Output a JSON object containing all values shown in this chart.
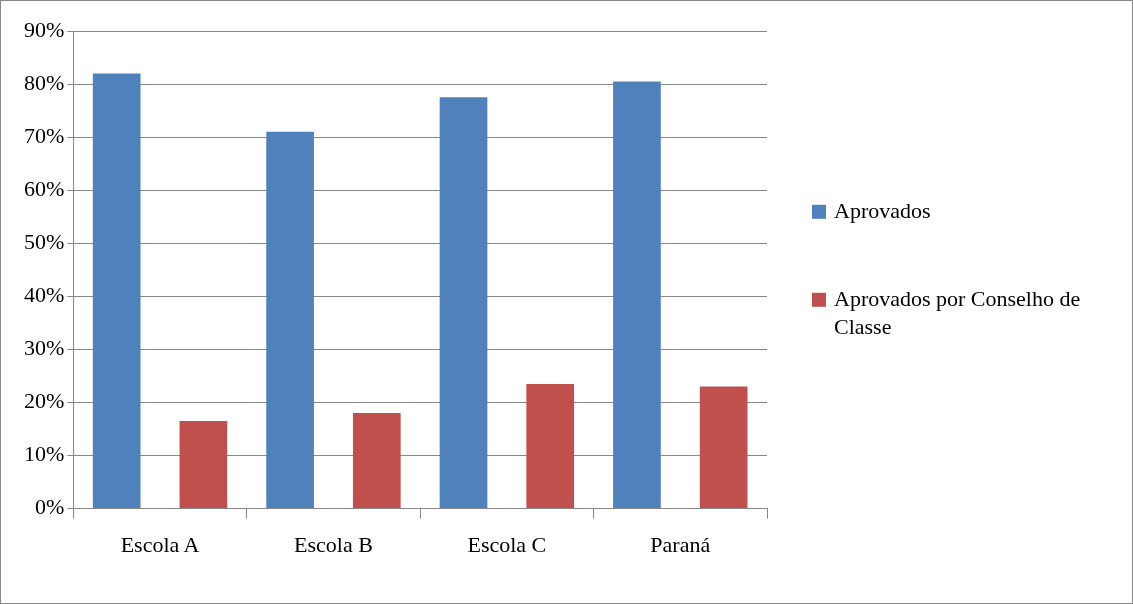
{
  "chart_data": {
    "type": "bar",
    "categories": [
      "Escola A",
      "Escola B",
      "Escola C",
      "Paraná"
    ],
    "series": [
      {
        "name": "Aprovados",
        "color": "#4f81bd",
        "values": [
          82,
          71,
          77.5,
          80.5
        ]
      },
      {
        "name": "Aprovados por Conselho de Classe",
        "color": "#c0504d",
        "values": [
          16.5,
          18,
          23.5,
          23
        ]
      }
    ],
    "ylim": [
      0,
      90
    ],
    "yticks": [
      {
        "value": 0,
        "label": "0%"
      },
      {
        "value": 10,
        "label": "10%"
      },
      {
        "value": 20,
        "label": "20%"
      },
      {
        "value": 30,
        "label": "30%"
      },
      {
        "value": 40,
        "label": "40%"
      },
      {
        "value": 50,
        "label": "50%"
      },
      {
        "value": 60,
        "label": "60%"
      },
      {
        "value": 70,
        "label": "70%"
      },
      {
        "value": 80,
        "label": "80%"
      },
      {
        "value": 90,
        "label": "90%"
      }
    ],
    "grid": "y",
    "legend": "right"
  }
}
